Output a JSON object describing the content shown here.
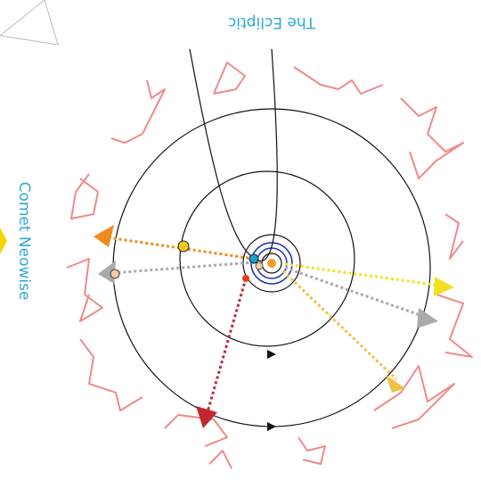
{
  "labels": {
    "ecliptic": "The Ecliptic",
    "comet": "Comet Neowise"
  }
}
